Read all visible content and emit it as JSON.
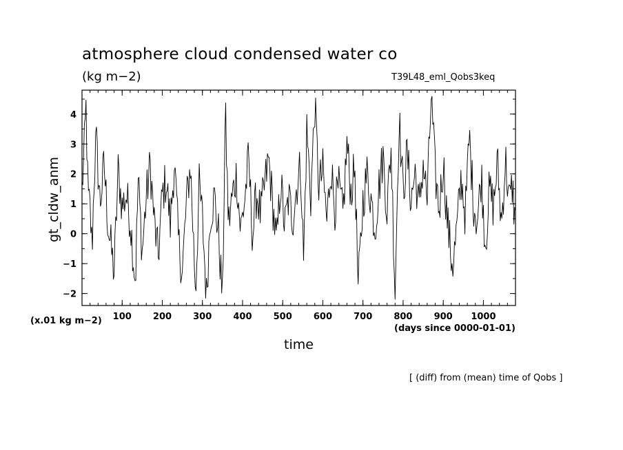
{
  "chart_data": {
    "type": "line",
    "title": "atmosphere cloud condensed water co",
    "units": "(kg m−2)",
    "run_name": "T39L48_eml_Qobs3keq",
    "ylabel": "gt_cldw_anm",
    "xlabel": "time",
    "y_scale_note": "(x.01 kg m−2)",
    "x_unit_note": "(days since 0000-01-01)",
    "footnote": "[ (diff) from (mean) time of Qobs ]",
    "xlim": [
      0,
      1080
    ],
    "ylim": [
      -2.4,
      4.8
    ],
    "x_ticks": [
      100,
      200,
      300,
      400,
      500,
      600,
      700,
      800,
      900,
      1000
    ],
    "x_tick_labels": [
      "100",
      "200",
      "300",
      "400",
      "500",
      "600",
      "700",
      "800",
      "900",
      "1000"
    ],
    "y_ticks": [
      -2,
      -1,
      0,
      1,
      2,
      3,
      4
    ],
    "y_tick_labels": [
      "−2",
      "−1",
      "0",
      "1",
      "2",
      "3",
      "4"
    ],
    "grid": false,
    "x_step": 2,
    "line_color": "#000000",
    "anchors": [
      [
        0,
        1.5
      ],
      [
        5,
        2.6
      ],
      [
        10,
        4.2
      ],
      [
        15,
        1.2
      ],
      [
        20,
        0.8
      ],
      [
        25,
        -0.5
      ],
      [
        30,
        1.8
      ],
      [
        35,
        3.2
      ],
      [
        45,
        1.0
      ],
      [
        55,
        2.3
      ],
      [
        65,
        0.3
      ],
      [
        80,
        -1.3
      ],
      [
        90,
        2.1
      ],
      [
        100,
        0.9
      ],
      [
        110,
        1.3
      ],
      [
        120,
        0.5
      ],
      [
        125,
        -0.3
      ],
      [
        133,
        -1.6
      ],
      [
        140,
        1.8
      ],
      [
        150,
        -0.6
      ],
      [
        160,
        1.2
      ],
      [
        170,
        2.3
      ],
      [
        180,
        0.4
      ],
      [
        190,
        -0.8
      ],
      [
        200,
        1.3
      ],
      [
        210,
        1.8
      ],
      [
        220,
        0.3
      ],
      [
        230,
        2.4
      ],
      [
        240,
        -0.2
      ],
      [
        250,
        -1.3
      ],
      [
        260,
        1.0
      ],
      [
        270,
        2.3
      ],
      [
        283,
        -1.9
      ],
      [
        292,
        1.6
      ],
      [
        300,
        0.5
      ],
      [
        310,
        -2.1
      ],
      [
        320,
        0.7
      ],
      [
        330,
        1.2
      ],
      [
        340,
        0.0
      ],
      [
        350,
        -2.2
      ],
      [
        357,
        4.1
      ],
      [
        365,
        0.3
      ],
      [
        375,
        1.3
      ],
      [
        385,
        2.0
      ],
      [
        395,
        0.1
      ],
      [
        405,
        1.1
      ],
      [
        415,
        2.5
      ],
      [
        425,
        -0.1
      ],
      [
        435,
        1.4
      ],
      [
        445,
        0.6
      ],
      [
        455,
        1.6
      ],
      [
        465,
        2.5
      ],
      [
        475,
        1.0
      ],
      [
        485,
        -0.4
      ],
      [
        495,
        1.8
      ],
      [
        505,
        0.2
      ],
      [
        515,
        1.2
      ],
      [
        525,
        0.5
      ],
      [
        535,
        1.6
      ],
      [
        545,
        2.3
      ],
      [
        552,
        -0.9
      ],
      [
        560,
        3.5
      ],
      [
        570,
        1.2
      ],
      [
        580,
        4.3
      ],
      [
        590,
        1.6
      ],
      [
        600,
        2.1
      ],
      [
        610,
        0.4
      ],
      [
        620,
        2.3
      ],
      [
        630,
        0.9
      ],
      [
        640,
        1.5
      ],
      [
        650,
        0.6
      ],
      [
        660,
        3.0
      ],
      [
        670,
        1.4
      ],
      [
        680,
        2.2
      ],
      [
        688,
        -1.9
      ],
      [
        700,
        1.1
      ],
      [
        710,
        2.0
      ],
      [
        720,
        1.2
      ],
      [
        730,
        0.2
      ],
      [
        740,
        1.6
      ],
      [
        750,
        2.6
      ],
      [
        760,
        0.8
      ],
      [
        770,
        2.9
      ],
      [
        780,
        -1.9
      ],
      [
        790,
        3.9
      ],
      [
        800,
        1.4
      ],
      [
        810,
        2.7
      ],
      [
        820,
        1.1
      ],
      [
        830,
        2.1
      ],
      [
        840,
        0.8
      ],
      [
        850,
        2.4
      ],
      [
        860,
        1.1
      ],
      [
        870,
        4.6
      ],
      [
        880,
        2.0
      ],
      [
        890,
        0.8
      ],
      [
        900,
        2.4
      ],
      [
        910,
        0.5
      ],
      [
        920,
        -0.8
      ],
      [
        925,
        -1.0
      ],
      [
        935,
        0.3
      ],
      [
        945,
        1.9
      ],
      [
        955,
        0.6
      ],
      [
        965,
        3.3
      ],
      [
        975,
        1.1
      ],
      [
        985,
        0.4
      ],
      [
        995,
        2.0
      ],
      [
        1005,
        -0.4
      ],
      [
        1015,
        1.5
      ],
      [
        1025,
        0.9
      ],
      [
        1035,
        2.4
      ],
      [
        1045,
        0.3
      ],
      [
        1055,
        2.5
      ],
      [
        1065,
        1.0
      ],
      [
        1072,
        1.6
      ],
      [
        1080,
        0.3
      ]
    ]
  }
}
